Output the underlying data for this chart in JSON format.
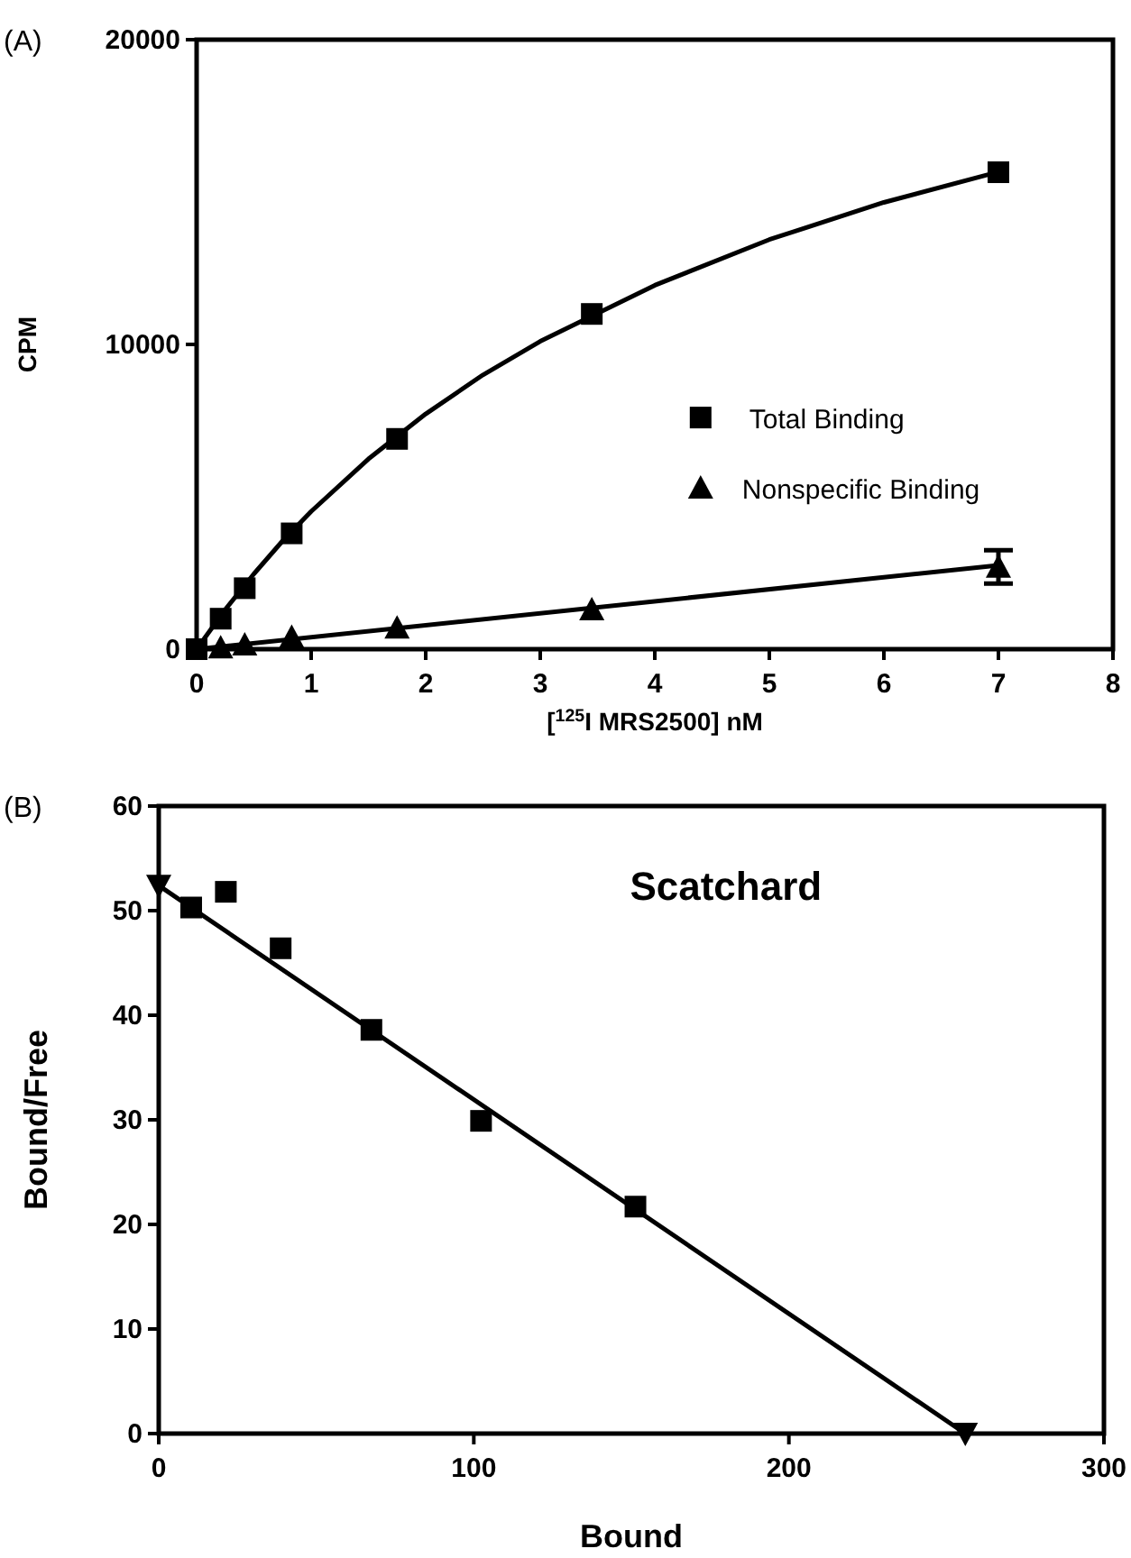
{
  "chart_data": [
    {
      "type": "scatter",
      "xlabel": "[$^{125}$I MRS2500] nM",
      "ylabel": "CPM",
      "annotations": [
        "(A)"
      ],
      "xlim": [
        0,
        8
      ],
      "xticks": [
        0,
        1,
        2,
        3,
        4,
        5,
        6,
        7,
        8
      ],
      "ylim": [
        0,
        20000
      ],
      "yticks": [
        0,
        10000,
        20000
      ],
      "grid": false,
      "legend": "right",
      "series": [
        {
          "name": "Total Binding",
          "color": "#000000",
          "marker": "square",
          "x": [
            0,
            0.21,
            0.42,
            0.83,
            1.75,
            3.45,
            7.0
          ],
          "values": [
            0,
            1000,
            2000,
            3800,
            6900,
            11000,
            15650
          ]
        },
        {
          "name": "Nonspecific Binding",
          "color": "#000000",
          "marker": "triangle",
          "x": [
            0.21,
            0.42,
            0.83,
            1.75,
            3.45,
            7.0
          ],
          "values": [
            50,
            150,
            400,
            700,
            1300,
            2700
          ],
          "errors": [
            null,
            null,
            null,
            null,
            null,
            550
          ]
        },
        {
          "type": "line",
          "color": "#000000",
          "x": [
            0,
            0.25,
            0.5,
            0.75,
            1,
            1.5,
            2,
            2.5,
            3,
            4,
            5,
            6,
            7
          ],
          "values": [
            0,
            1300,
            2470,
            3550,
            4520,
            6240,
            7720,
            9000,
            10100,
            11940,
            13440,
            14660,
            15660
          ]
        },
        {
          "type": "line",
          "color": "#000000",
          "x": [
            0,
            7
          ],
          "values": [
            0,
            2750
          ]
        }
      ]
    },
    {
      "type": "scatter",
      "xlabel": "Bound",
      "ylabel": "Bound/Free",
      "annotations": [
        "(B)",
        {
          "text": "Scatchard"
        }
      ],
      "xlim": [
        0,
        300
      ],
      "xticks": [
        0,
        100,
        200,
        300
      ],
      "ylim": [
        0,
        60
      ],
      "yticks": [
        0,
        10,
        20,
        30,
        40,
        50,
        60
      ],
      "grid": false,
      "legend": false,
      "series": [
        {
          "color": "#000000",
          "marker": "square",
          "x": [
            10.3,
            21.3,
            38.7,
            67.5,
            102.3,
            151.3
          ],
          "values": [
            50.3,
            51.8,
            46.4,
            38.6,
            29.9,
            21.7
          ]
        },
        {
          "color": "#000000",
          "marker": "triangle-down",
          "x": [
            0,
            256
          ],
          "values": [
            52.4,
            0
          ]
        },
        {
          "type": "line",
          "color": "#000000",
          "x": [
            0,
            256
          ],
          "values": [
            52.4,
            0
          ]
        }
      ]
    }
  ]
}
